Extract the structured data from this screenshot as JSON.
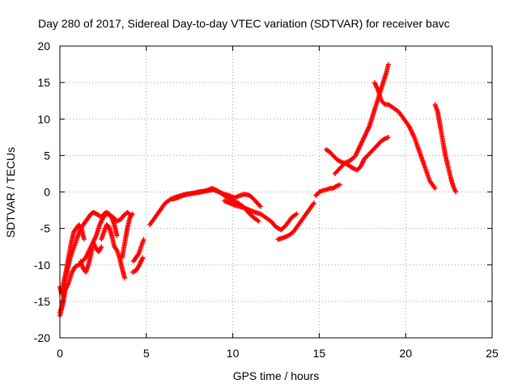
{
  "chart_data": {
    "type": "scatter",
    "title": "Day 280 of 2017, Sidereal Day-to-day VTEC variation (SDTVAR) for receiver bavc",
    "xlabel": "GPS time / hours",
    "ylabel": "SDTVAR / TECUs",
    "xlim": [
      0,
      25
    ],
    "ylim": [
      -20,
      20
    ],
    "xticks": [
      "0",
      "5",
      "10",
      "15",
      "20",
      "25"
    ],
    "yticks": [
      "-20",
      "-15",
      "-10",
      "-5",
      "0",
      "5",
      "10",
      "15",
      "20"
    ],
    "grid": true,
    "legend": "none",
    "marker": "plus",
    "colors": {
      "series": "#ff0000",
      "grid": "#a0a0a0",
      "axes": "#000000"
    },
    "series": [
      {
        "x": [
          0.0,
          0.15,
          0.3,
          0.5,
          0.7,
          0.9,
          1.1,
          1.3,
          1.5,
          1.7,
          1.9,
          2.1,
          2.3,
          2.5,
          2.7,
          2.9,
          3.1,
          3.3,
          3.5,
          3.7,
          3.9,
          4.1
        ],
        "y": [
          -16.5,
          -15.5,
          -13.5,
          -12.5,
          -11.0,
          -10.2,
          -10.0,
          -9.5,
          -9.0,
          -8.0,
          -7.0,
          -6.0,
          -4.5,
          -3.5,
          -3.0,
          -3.2,
          -3.5,
          -4.0,
          -3.8,
          -3.2,
          -2.8,
          -3.2
        ]
      },
      {
        "x": [
          0.0,
          0.1,
          0.2,
          0.35,
          0.5,
          0.65,
          0.8,
          0.95,
          1.1,
          1.25,
          1.4
        ],
        "y": [
          -13.0,
          -14.0,
          -12.5,
          -11.0,
          -9.0,
          -7.0,
          -5.5,
          -5.0,
          -4.5,
          -5.0,
          -6.5
        ]
      },
      {
        "x": [
          0.0,
          0.1,
          0.2,
          0.3,
          0.45,
          0.6,
          0.75,
          0.9,
          1.05,
          1.2,
          1.35,
          1.5,
          1.65,
          1.8,
          1.95,
          2.1,
          2.25,
          2.4,
          2.55,
          2.7,
          2.85,
          3.0,
          3.15,
          3.3
        ],
        "y": [
          -17.0,
          -16.0,
          -15.0,
          -12.0,
          -10.5,
          -9.0,
          -8.0,
          -7.0,
          -6.0,
          -5.0,
          -4.5,
          -4.0,
          -3.5,
          -3.0,
          -2.8,
          -3.0,
          -3.2,
          -3.5,
          -3.0,
          -2.8,
          -3.0,
          -3.5,
          -4.5,
          -6.0
        ]
      },
      {
        "x": [
          1.2,
          1.35,
          1.5,
          1.65,
          1.8,
          1.95,
          2.1,
          2.25,
          2.4
        ],
        "y": [
          -9.5,
          -10.5,
          -11.0,
          -10.0,
          -8.5,
          -7.0,
          -7.8,
          -8.2,
          -7.5
        ]
      },
      {
        "x": [
          2.4,
          2.55,
          2.7,
          2.85,
          3.0,
          3.15,
          3.3,
          3.45,
          3.6,
          3.75
        ],
        "y": [
          -6.5,
          -5.5,
          -4.5,
          -4.8,
          -6.0,
          -7.5,
          -8.0,
          -9.0,
          -10.5,
          -11.8
        ]
      },
      {
        "x": [
          3.6,
          3.75,
          3.9,
          4.05,
          4.2
        ],
        "y": [
          -9.0,
          -7.0,
          -5.0,
          -3.5,
          -3.0
        ]
      },
      {
        "x": [
          4.2,
          4.4,
          4.6,
          4.8
        ],
        "y": [
          -11.0,
          -10.8,
          -10.0,
          -9.0
        ]
      },
      {
        "x": [
          4.25,
          4.4,
          4.55,
          4.7,
          4.85
        ],
        "y": [
          -9.5,
          -9.0,
          -8.5,
          -7.5,
          -6.5
        ]
      },
      {
        "x": [
          5.2,
          5.5,
          5.8,
          6.1,
          6.4,
          6.7,
          7.0,
          7.3,
          7.6,
          7.9,
          8.2,
          8.5,
          8.8,
          9.1,
          9.4,
          9.7,
          10.0,
          10.3,
          10.6,
          10.9,
          11.2,
          11.5
        ],
        "y": [
          -4.5,
          -3.5,
          -2.5,
          -1.5,
          -1.0,
          -0.7,
          -0.5,
          -0.3,
          -0.2,
          -0.1,
          0.0,
          0.2,
          0.5,
          0.2,
          -0.3,
          -0.8,
          -1.2,
          -1.5,
          -2.0,
          -2.8,
          -3.5,
          -4.0
        ]
      },
      {
        "x": [
          6.5,
          6.8,
          7.1,
          7.4,
          7.7,
          8.0,
          8.3,
          8.6,
          8.9,
          9.2,
          9.5,
          9.8,
          10.1,
          10.4,
          10.7,
          11.0,
          11.3,
          11.6
        ],
        "y": [
          -1.0,
          -0.8,
          -0.5,
          -0.3,
          -0.2,
          0.0,
          0.1,
          0.2,
          0.3,
          0.0,
          -0.3,
          -0.5,
          -0.8,
          -0.5,
          -0.3,
          -0.5,
          -1.2,
          -2.0
        ]
      },
      {
        "x": [
          9.5,
          9.8,
          10.1,
          10.4,
          10.7,
          11.0,
          11.3,
          11.6,
          11.9,
          12.2,
          12.5,
          12.8,
          13.1,
          13.4,
          13.7
        ],
        "y": [
          -1.2,
          -1.5,
          -1.8,
          -2.0,
          -2.2,
          -2.5,
          -2.8,
          -3.0,
          -3.5,
          -4.0,
          -4.8,
          -5.2,
          -4.5,
          -3.5,
          -3.0
        ]
      },
      {
        "x": [
          12.6,
          12.9,
          13.2,
          13.5,
          13.8,
          14.1,
          14.4,
          14.7
        ],
        "y": [
          -6.5,
          -6.3,
          -6.0,
          -5.5,
          -4.5,
          -3.5,
          -2.5,
          -1.5
        ]
      },
      {
        "x": [
          14.8,
          15.0,
          15.2,
          15.4,
          15.6,
          15.8,
          16.0,
          16.2
        ],
        "y": [
          -0.5,
          0.0,
          0.2,
          0.3,
          0.5,
          0.5,
          0.8,
          1.0
        ]
      },
      {
        "x": [
          15.4,
          15.6,
          15.8,
          16.0,
          16.2,
          16.4,
          16.6,
          16.8,
          17.0,
          17.2
        ],
        "y": [
          5.8,
          5.5,
          5.0,
          4.5,
          4.2,
          4.0,
          3.8,
          3.5,
          3.2,
          3.0
        ]
      },
      {
        "x": [
          15.9,
          16.1,
          16.3,
          16.5,
          16.7,
          16.9,
          17.1,
          17.3,
          17.5,
          17.7,
          17.9,
          18.1,
          18.3,
          18.5,
          18.7,
          18.9,
          19.0
        ],
        "y": [
          2.5,
          3.0,
          3.5,
          4.0,
          4.2,
          4.5,
          5.0,
          6.0,
          7.0,
          8.0,
          9.0,
          10.5,
          12.0,
          13.5,
          15.0,
          16.5,
          17.5
        ]
      },
      {
        "x": [
          17.2,
          17.4,
          17.6,
          17.8,
          18.0,
          18.2,
          18.4,
          18.6,
          18.8,
          19.0
        ],
        "y": [
          3.0,
          3.5,
          4.5,
          5.0,
          5.5,
          6.0,
          6.5,
          7.0,
          7.3,
          7.5
        ]
      },
      {
        "x": [
          18.2,
          18.4,
          18.6,
          18.8,
          19.0,
          19.3,
          19.6,
          19.9,
          20.2,
          20.5,
          20.8,
          21.1,
          21.4,
          21.7
        ],
        "y": [
          15.0,
          14.0,
          12.5,
          12.0,
          12.0,
          11.5,
          11.0,
          10.0,
          9.0,
          7.5,
          5.5,
          3.5,
          1.5,
          0.5
        ]
      },
      {
        "x": [
          21.7,
          21.85,
          22.0,
          22.15,
          22.3,
          22.45,
          22.6,
          22.75,
          22.9
        ],
        "y": [
          12.0,
          11.0,
          9.0,
          7.0,
          5.0,
          3.5,
          2.0,
          0.8,
          0.0
        ]
      }
    ]
  }
}
